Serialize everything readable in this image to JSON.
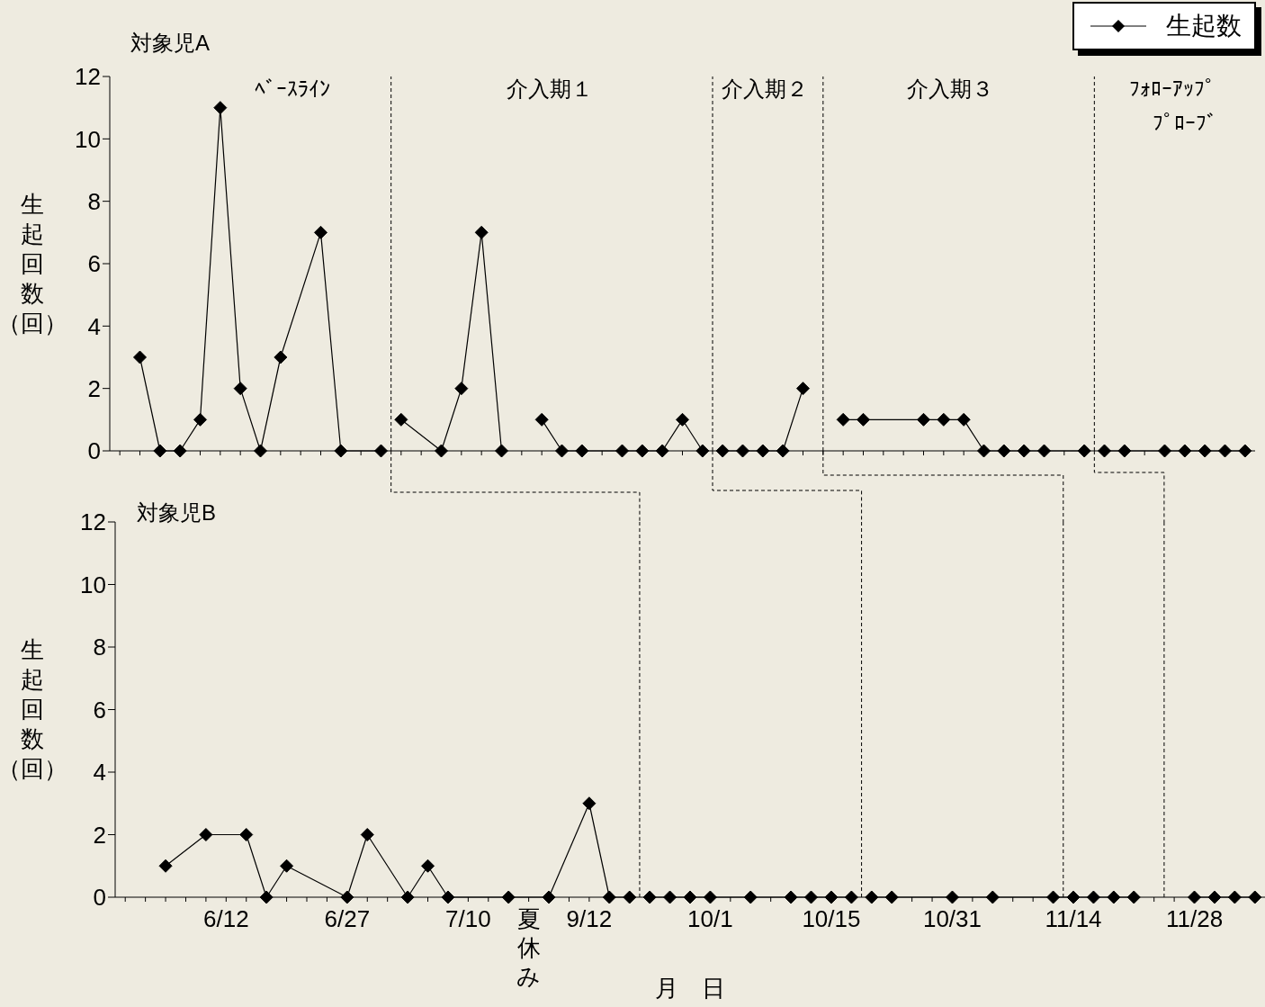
{
  "chart_data": [
    {
      "type": "line",
      "title": "対象児A",
      "ylabel": "生起回数（回）",
      "legend": "top right",
      "marker": "diamond",
      "line_style": "solid",
      "tick_labels": "y",
      "ylim": [
        0,
        12
      ],
      "yticks": [
        0,
        2,
        4,
        6,
        8,
        10,
        12
      ],
      "categories": [
        null,
        null,
        null,
        null,
        null,
        null,
        null,
        null,
        null,
        null,
        null,
        null,
        null,
        null,
        null,
        null,
        null,
        null,
        null,
        null,
        null,
        null,
        null,
        null,
        null,
        null,
        null,
        null,
        null,
        null,
        null,
        null,
        null,
        null,
        null,
        null,
        null,
        null,
        null,
        null,
        null,
        null,
        null,
        null,
        null,
        null,
        null,
        null,
        null,
        null,
        null,
        null,
        null,
        null,
        null,
        null,
        null
      ],
      "series": [
        {
          "name": "生起数",
          "color": "#000000",
          "values": [
            null,
            3,
            0,
            0,
            1,
            11,
            2,
            0,
            3,
            null,
            7,
            0,
            null,
            0,
            null,
            null,
            null,
            null,
            null,
            null,
            null,
            null,
            null,
            null,
            null,
            null,
            null,
            null,
            null,
            null,
            null,
            null,
            null,
            null,
            null,
            null,
            null,
            null,
            null,
            null,
            null,
            null,
            null,
            null,
            null,
            null,
            null,
            null,
            null,
            null,
            null,
            null,
            null,
            null,
            null,
            null,
            null
          ]
        },
        {
          "color": "#000000",
          "values": [
            null,
            null,
            null,
            null,
            null,
            null,
            null,
            null,
            null,
            null,
            null,
            null,
            null,
            null,
            1,
            null,
            0,
            2,
            7,
            0,
            null,
            null,
            null,
            null,
            null,
            null,
            null,
            null,
            null,
            null,
            null,
            null,
            null,
            null,
            null,
            null,
            null,
            null,
            null,
            null,
            null,
            null,
            null,
            null,
            null,
            null,
            null,
            null,
            null,
            null,
            null,
            null,
            null,
            null,
            null,
            null,
            null
          ]
        },
        {
          "color": "#000000",
          "values": [
            null,
            null,
            null,
            null,
            null,
            null,
            null,
            null,
            null,
            null,
            null,
            null,
            null,
            null,
            null,
            null,
            null,
            null,
            null,
            null,
            null,
            1,
            0,
            0,
            null,
            0,
            0,
            0,
            1,
            0,
            null,
            null,
            null,
            null,
            null,
            null,
            null,
            null,
            null,
            null,
            null,
            null,
            null,
            null,
            null,
            null,
            null,
            null,
            null,
            null,
            null,
            null,
            null,
            null,
            null,
            null,
            null
          ]
        },
        {
          "color": "#000000",
          "values": [
            null,
            null,
            null,
            null,
            null,
            null,
            null,
            null,
            null,
            null,
            null,
            null,
            null,
            null,
            null,
            null,
            null,
            null,
            null,
            null,
            null,
            null,
            null,
            null,
            null,
            null,
            null,
            null,
            null,
            null,
            0,
            0,
            0,
            0,
            2,
            null,
            null,
            null,
            null,
            null,
            null,
            null,
            null,
            null,
            null,
            null,
            null,
            null,
            null,
            null,
            null,
            null,
            null,
            null,
            null,
            null,
            null
          ]
        },
        {
          "color": "#000000",
          "values": [
            null,
            null,
            null,
            null,
            null,
            null,
            null,
            null,
            null,
            null,
            null,
            null,
            null,
            null,
            null,
            null,
            null,
            null,
            null,
            null,
            null,
            null,
            null,
            null,
            null,
            null,
            null,
            null,
            null,
            null,
            null,
            null,
            null,
            null,
            null,
            null,
            1,
            1,
            null,
            null,
            1,
            1,
            1,
            0,
            0,
            0,
            0,
            null,
            0,
            null,
            null,
            null,
            null,
            null,
            null,
            null,
            null
          ]
        },
        {
          "color": "#000000",
          "values": [
            null,
            null,
            null,
            null,
            null,
            null,
            null,
            null,
            null,
            null,
            null,
            null,
            null,
            null,
            null,
            null,
            null,
            null,
            null,
            null,
            null,
            null,
            null,
            null,
            null,
            null,
            null,
            null,
            null,
            null,
            null,
            null,
            null,
            null,
            null,
            null,
            null,
            null,
            null,
            null,
            null,
            null,
            null,
            null,
            null,
            null,
            null,
            null,
            null,
            0,
            0,
            null,
            0,
            0,
            0,
            0,
            0
          ]
        }
      ],
      "annotations": [
        "ﾍﾞｰｽﾗｲﾝ",
        "介入期１",
        "介入期２",
        "介入期３",
        "ﾌｫﾛｰｱｯﾌﾟ",
        "ﾌﾟﾛｰﾌﾞ"
      ]
    },
    {
      "type": "line",
      "title": "対象児B",
      "xlabel": "月　日",
      "ylabel": "生起回数（回）",
      "marker": "diamond",
      "line_style": "solid",
      "ylim": [
        0,
        12
      ],
      "yticks": [
        0,
        2,
        4,
        6,
        8,
        10,
        12
      ],
      "categories": [
        null,
        null,
        null,
        null,
        null,
        "6/12",
        null,
        null,
        null,
        null,
        null,
        "6/27",
        null,
        null,
        null,
        null,
        null,
        "7/10",
        null,
        null,
        "夏休み",
        null,
        null,
        "9/12",
        null,
        null,
        null,
        null,
        null,
        "10/1",
        null,
        null,
        null,
        null,
        null,
        "10/15",
        null,
        null,
        null,
        null,
        null,
        "10/31",
        null,
        null,
        null,
        null,
        null,
        "11/14",
        null,
        null,
        null,
        null,
        null,
        "11/28",
        null,
        null,
        null
      ],
      "series": [
        {
          "color": "#000000",
          "values": [
            null,
            null,
            1,
            null,
            2,
            null,
            2,
            0,
            1,
            null,
            null,
            0,
            2,
            null,
            0,
            1,
            0,
            null,
            null,
            0,
            null,
            0,
            null,
            3,
            0,
            0,
            null,
            null,
            null,
            null,
            null,
            null,
            null,
            null,
            null,
            null,
            null,
            null,
            null,
            null,
            null,
            null,
            null,
            null,
            null,
            null,
            null,
            null,
            null,
            null,
            null,
            null,
            null,
            null,
            null,
            null,
            null
          ]
        },
        {
          "color": "#000000",
          "values": [
            null,
            null,
            null,
            null,
            null,
            null,
            null,
            null,
            null,
            null,
            null,
            null,
            null,
            null,
            null,
            null,
            null,
            null,
            null,
            null,
            null,
            null,
            null,
            null,
            null,
            null,
            0,
            0,
            0,
            0,
            null,
            0,
            null,
            0,
            0,
            0,
            0,
            null,
            null,
            null,
            null,
            null,
            null,
            null,
            null,
            null,
            null,
            null,
            null,
            null,
            null,
            null,
            null,
            null,
            null,
            null,
            null
          ]
        },
        {
          "color": "#000000",
          "values": [
            null,
            null,
            null,
            null,
            null,
            null,
            null,
            null,
            null,
            null,
            null,
            null,
            null,
            null,
            null,
            null,
            null,
            null,
            null,
            null,
            null,
            null,
            null,
            null,
            null,
            null,
            null,
            null,
            null,
            null,
            null,
            null,
            null,
            null,
            null,
            null,
            null,
            0,
            0,
            null,
            null,
            0,
            null,
            0,
            null,
            null,
            0,
            0,
            0,
            0,
            0,
            null,
            null,
            null,
            null,
            null,
            null
          ]
        },
        {
          "color": "#000000",
          "values": [
            null,
            null,
            null,
            null,
            null,
            null,
            null,
            null,
            null,
            null,
            null,
            null,
            null,
            null,
            null,
            null,
            null,
            null,
            null,
            null,
            null,
            null,
            null,
            null,
            null,
            null,
            null,
            null,
            null,
            null,
            null,
            null,
            null,
            null,
            null,
            null,
            null,
            null,
            null,
            null,
            null,
            null,
            null,
            null,
            null,
            null,
            null,
            null,
            null,
            null,
            null,
            null,
            null,
            0,
            0,
            0,
            0
          ]
        }
      ]
    }
  ]
}
